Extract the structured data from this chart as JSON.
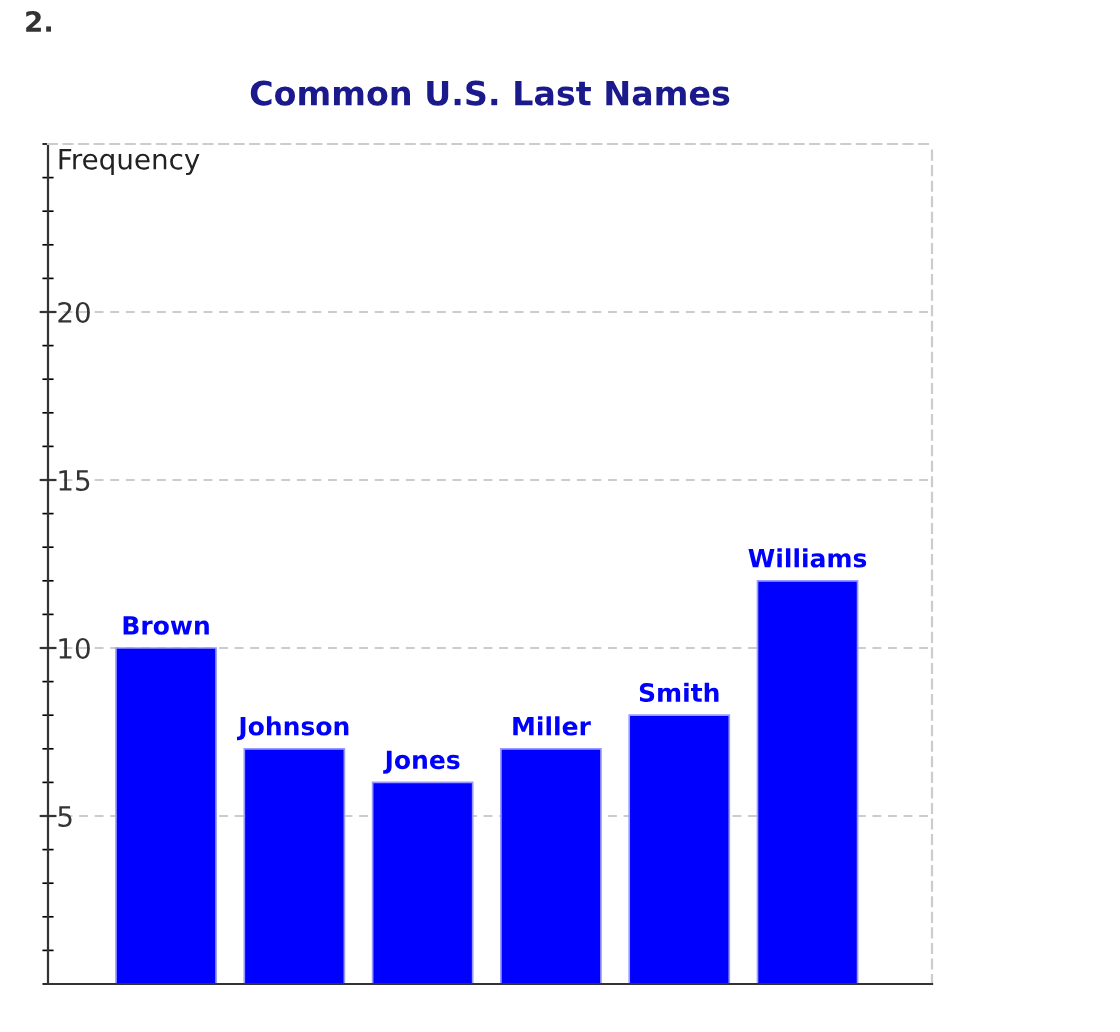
{
  "chart_data": {
    "type": "bar",
    "title": "Common U.S. Last Names",
    "ylabel": "Frequency",
    "categories": [
      "Brown",
      "Johnson",
      "Jones",
      "Miller",
      "Smith",
      "Williams"
    ],
    "values": [
      10,
      7,
      6,
      7,
      8,
      12
    ],
    "color": "#0000ff",
    "ylim": [
      0,
      25
    ],
    "yticks": [
      5,
      10,
      15,
      20
    ],
    "grid": "y",
    "annotations": [
      "2."
    ]
  }
}
